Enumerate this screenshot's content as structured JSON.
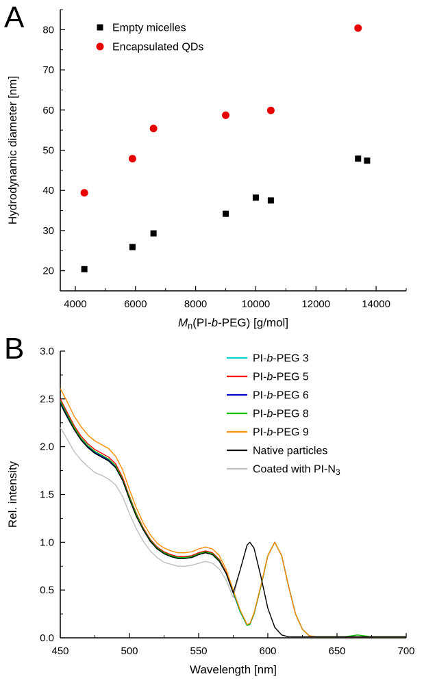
{
  "panels": {
    "a": {
      "label": "A"
    },
    "b": {
      "label": "B"
    }
  },
  "chart_data": [
    {
      "id": "chart-a",
      "type": "scatter",
      "title": "",
      "xlabel": "Mn(PI-b-PEG) [g/mol]",
      "xlabel_rich": [
        [
          "M",
          "i"
        ],
        [
          "n",
          "sub"
        ],
        [
          "(PI-",
          ""
        ],
        [
          "b",
          "i"
        ],
        [
          "-PEG) [g/mol]",
          ""
        ]
      ],
      "ylabel": "Hydrodynamic diameter [nm]",
      "xlim": [
        3500,
        15000
      ],
      "ylim": [
        15,
        85
      ],
      "xticks": [
        4000,
        6000,
        8000,
        10000,
        12000,
        14000
      ],
      "xtick_labels": [
        "4000",
        "6000",
        "8000",
        "10000",
        "12000",
        "14000"
      ],
      "yticks": [
        20,
        30,
        40,
        50,
        60,
        70,
        80
      ],
      "ytick_labels": [
        "20",
        "30",
        "40",
        "50",
        "60",
        "70",
        "80"
      ],
      "grid": false,
      "legend_position": "inside-top-left",
      "series": [
        {
          "name": "Empty micelles",
          "color": "#000000",
          "marker": "square",
          "z": 1,
          "x": [
            4300,
            5900,
            6600,
            9000,
            10000,
            10500,
            13400,
            13700
          ],
          "y": [
            20.4,
            25.9,
            29.3,
            34.2,
            38.2,
            37.5,
            47.9,
            47.4
          ]
        },
        {
          "name": "Encapsulated QDs",
          "color": "#e60000",
          "marker": "circle",
          "z": 2,
          "x": [
            4300,
            5900,
            6600,
            9000,
            10500,
            13400
          ],
          "y": [
            39.4,
            47.9,
            55.4,
            58.7,
            59.9,
            80.4
          ]
        }
      ]
    },
    {
      "id": "chart-b",
      "type": "line",
      "title": "",
      "xlabel": "Wavelength [nm]",
      "ylabel": "Rel. intensity",
      "xlim": [
        450,
        700
      ],
      "ylim": [
        0,
        3.0
      ],
      "xticks": [
        450,
        500,
        550,
        600,
        650,
        700
      ],
      "xtick_labels": [
        "450",
        "500",
        "550",
        "600",
        "650",
        "700"
      ],
      "yticks": [
        0,
        0.5,
        1.0,
        1.5,
        2.0,
        2.5,
        3.0
      ],
      "ytick_labels": [
        "0.0",
        "0.5",
        "1.0",
        "1.5",
        "2.0",
        "2.5",
        "3.0"
      ],
      "grid": false,
      "legend_position": "inside-top-right",
      "x_shared": [
        450,
        455,
        460,
        465,
        470,
        475,
        480,
        485,
        490,
        495,
        500,
        505,
        510,
        515,
        520,
        525,
        530,
        535,
        540,
        545,
        550,
        555,
        560,
        565,
        570,
        575,
        580,
        585,
        587,
        590,
        595,
        600,
        605,
        610,
        615,
        620,
        625,
        630,
        635,
        640,
        645,
        650,
        655,
        660,
        665,
        670,
        675,
        680,
        685,
        690,
        695,
        700
      ],
      "series": [
        {
          "name": "PI-b-PEG 3",
          "name_rich": [
            [
              "PI-",
              ""
            ],
            [
              "b",
              "i"
            ],
            [
              "-PEG 3",
              ""
            ]
          ],
          "color": "#00d2d2",
          "z": 1,
          "y": [
            2.45,
            2.31,
            2.18,
            2.07,
            1.99,
            1.93,
            1.89,
            1.85,
            1.78,
            1.65,
            1.45,
            1.27,
            1.13,
            1.01,
            0.93,
            0.88,
            0.85,
            0.83,
            0.83,
            0.84,
            0.87,
            0.89,
            0.87,
            0.8,
            0.67,
            0.47,
            0.27,
            0.13,
            0.14,
            0.25,
            0.54,
            0.86,
            1.0,
            0.86,
            0.54,
            0.25,
            0.09,
            0.02,
            0.01,
            0.01,
            0.01,
            0.01,
            0.01,
            0.01,
            0.01,
            0.01,
            0.01,
            0.01,
            0.01,
            0.01,
            0.01,
            0.01
          ]
        },
        {
          "name": "PI-b-PEG 5",
          "name_rich": [
            [
              "PI-",
              ""
            ],
            [
              "b",
              "i"
            ],
            [
              "-PEG 5",
              ""
            ]
          ],
          "color": "#ff0000",
          "z": 3,
          "y": [
            2.5,
            2.36,
            2.22,
            2.11,
            2.03,
            1.97,
            1.93,
            1.89,
            1.82,
            1.68,
            1.48,
            1.3,
            1.15,
            1.03,
            0.95,
            0.9,
            0.87,
            0.85,
            0.85,
            0.86,
            0.89,
            0.91,
            0.89,
            0.82,
            0.68,
            0.48,
            0.28,
            0.13,
            0.14,
            0.25,
            0.54,
            0.86,
            1.0,
            0.86,
            0.54,
            0.25,
            0.09,
            0.02,
            0.01,
            0.01,
            0.01,
            0.01,
            0.01,
            0.01,
            0.01,
            0.01,
            0.01,
            0.01,
            0.01,
            0.01,
            0.01,
            0.01
          ]
        },
        {
          "name": "PI-b-PEG 6",
          "name_rich": [
            [
              "PI-",
              ""
            ],
            [
              "b",
              "i"
            ],
            [
              "-PEG 6",
              ""
            ]
          ],
          "color": "#0000cd",
          "z": 4,
          "y": [
            2.46,
            2.33,
            2.19,
            2.08,
            2.0,
            1.94,
            1.9,
            1.86,
            1.79,
            1.66,
            1.46,
            1.28,
            1.13,
            1.02,
            0.94,
            0.89,
            0.86,
            0.84,
            0.84,
            0.85,
            0.88,
            0.9,
            0.88,
            0.81,
            0.67,
            0.47,
            0.28,
            0.13,
            0.14,
            0.25,
            0.54,
            0.86,
            1.0,
            0.86,
            0.54,
            0.25,
            0.09,
            0.02,
            0.01,
            0.01,
            0.01,
            0.01,
            0.01,
            0.01,
            0.01,
            0.01,
            0.01,
            0.01,
            0.01,
            0.01,
            0.01,
            0.01
          ]
        },
        {
          "name": "PI-b-PEG 8",
          "name_rich": [
            [
              "PI-",
              ""
            ],
            [
              "b",
              "i"
            ],
            [
              "-PEG 8",
              ""
            ]
          ],
          "color": "#00c000",
          "z": 5,
          "y": [
            2.48,
            2.34,
            2.2,
            2.09,
            2.01,
            1.95,
            1.91,
            1.87,
            1.8,
            1.66,
            1.47,
            1.29,
            1.14,
            1.02,
            0.94,
            0.89,
            0.86,
            0.84,
            0.84,
            0.85,
            0.88,
            0.9,
            0.88,
            0.81,
            0.67,
            0.48,
            0.28,
            0.13,
            0.14,
            0.25,
            0.54,
            0.86,
            1.0,
            0.86,
            0.54,
            0.25,
            0.09,
            0.02,
            0.01,
            0.01,
            0.01,
            0.01,
            0.01,
            0.02,
            0.03,
            0.02,
            0.01,
            0.01,
            0.01,
            0.01,
            0.01,
            0.01
          ]
        },
        {
          "name": "PI-b-PEG 9",
          "name_rich": [
            [
              "PI-",
              ""
            ],
            [
              "b",
              "i"
            ],
            [
              "-PEG 9",
              ""
            ]
          ],
          "color": "#ff8c00",
          "z": 6,
          "y": [
            2.61,
            2.47,
            2.32,
            2.21,
            2.12,
            2.06,
            2.02,
            1.98,
            1.9,
            1.76,
            1.55,
            1.36,
            1.2,
            1.08,
            0.99,
            0.94,
            0.91,
            0.89,
            0.89,
            0.9,
            0.93,
            0.95,
            0.93,
            0.86,
            0.71,
            0.5,
            0.29,
            0.14,
            0.15,
            0.26,
            0.55,
            0.86,
            1.0,
            0.86,
            0.54,
            0.25,
            0.09,
            0.02,
            0.01,
            0.01,
            0.01,
            0.01,
            0.01,
            0.01,
            0.01,
            0.01,
            0.01,
            0.01,
            0.01,
            0.01,
            0.01,
            0.01
          ]
        },
        {
          "name": "Native particles",
          "color": "#000000",
          "z": 7,
          "y": [
            2.45,
            2.31,
            2.18,
            2.07,
            1.99,
            1.93,
            1.89,
            1.85,
            1.78,
            1.65,
            1.45,
            1.27,
            1.13,
            1.01,
            0.93,
            0.88,
            0.85,
            0.83,
            0.83,
            0.84,
            0.87,
            0.89,
            0.87,
            0.8,
            0.67,
            0.47,
            0.71,
            0.97,
            1.0,
            0.94,
            0.64,
            0.31,
            0.11,
            0.03,
            0.01,
            0.01,
            0.01,
            0.01,
            0.01,
            0.01,
            0.01,
            0.01,
            0.01,
            0.01,
            0.01,
            0.01,
            0.01,
            0.01,
            0.01,
            0.01,
            0.01,
            0.01
          ]
        },
        {
          "name": "Coated with PI-N3",
          "name_rich": [
            [
              "Coated with PI-N",
              ""
            ],
            [
              "3",
              "sub"
            ]
          ],
          "color": "#bdbdbd",
          "z": 2,
          "y": [
            2.2,
            2.08,
            1.95,
            1.86,
            1.79,
            1.73,
            1.7,
            1.66,
            1.6,
            1.48,
            1.3,
            1.14,
            1.01,
            0.91,
            0.84,
            0.79,
            0.77,
            0.75,
            0.75,
            0.76,
            0.78,
            0.8,
            0.78,
            0.72,
            0.6,
            0.42,
            0.71,
            0.97,
            1.0,
            0.94,
            0.64,
            0.31,
            0.11,
            0.03,
            0.01,
            0.01,
            0.01,
            0.01,
            0.01,
            0.01,
            0.01,
            0.01,
            0.01,
            0.01,
            0.01,
            0.01,
            0.01,
            0.01,
            0.01,
            0.01,
            0.01,
            0.01
          ]
        }
      ]
    }
  ]
}
